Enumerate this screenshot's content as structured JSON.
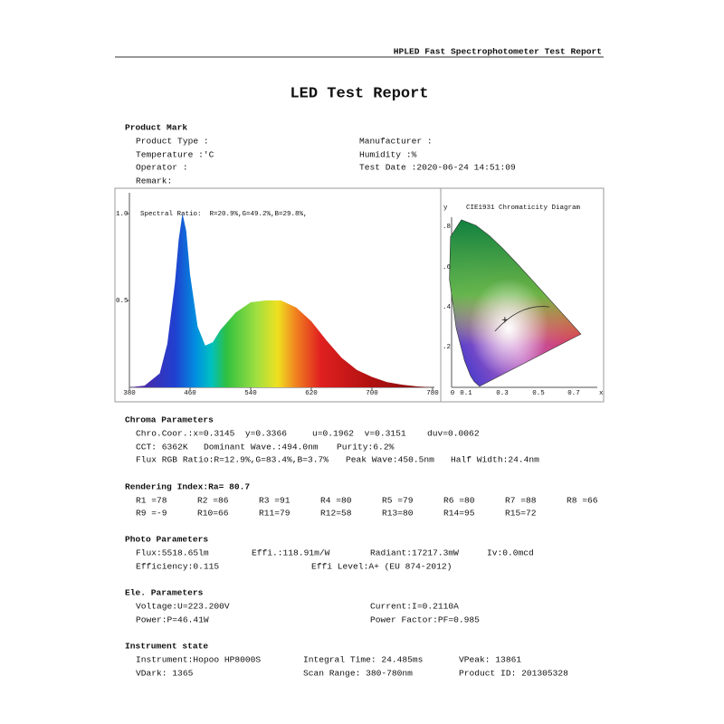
{
  "header": "HPLED Fast Spectrophotometer Test Report",
  "title": "LED Test Report",
  "sections": [
    {
      "heading": "Product Mark",
      "rows": [
        [
          "Product Type :",
          "Manufacturer :"
        ],
        [
          "Temperature :'C",
          "Humidity :%"
        ],
        [
          "Operator :",
          "Test Date :2020-06-24 14:51:09"
        ],
        [
          "Remark:"
        ]
      ]
    },
    {
      "heading": "Chroma Parameters",
      "rows": [
        [
          "Chro.Coor.:x=0.3145  y=0.3366",
          "u=0.1962  v=0.3151",
          "duv=0.0062"
        ],
        [
          "CCT: 6362K",
          "Dominant Wave.:494.0nm",
          "Purity:6.2%"
        ],
        [
          "Flux RGB Ratio:R=12.9%,G=83.4%,B=3.7%",
          "Peak Wave:450.5nm",
          "Half Width:24.4nm"
        ]
      ]
    },
    {
      "heading": "Rendering Index:Ra= 80.7",
      "rows": [
        [
          "R1 =78",
          "R2 =86",
          "R3 =91",
          "R4 =80",
          "R5 =79",
          "R6 =80",
          "R7 =88",
          "R8 =66"
        ],
        [
          "R9 =-9",
          "R10=66",
          "R11=79",
          "R12=58",
          "R13=80",
          "R14=95",
          "R15=72"
        ]
      ]
    },
    {
      "heading": "Photo Parameters",
      "rows": [
        [
          "Flux:5518.65lm",
          "Effi.:118.91m/W",
          "Radiant:17217.3mW",
          "Iv:0.0mcd"
        ],
        [
          "Efficiency:0.115",
          "Effi Level:A+ (EU 874-2012)"
        ]
      ]
    },
    {
      "heading": "Ele. Parameters",
      "rows": [
        [
          "Voltage:U=223.200V",
          "Current:I=0.2110A"
        ],
        [
          "Power:P=46.41W",
          "Power Factor:PF=0.985"
        ]
      ]
    },
    {
      "heading": "Instrument state",
      "rows": [
        [
          "Instrument:Hopoo HP8000S",
          "Integral Time: 24.485ms",
          "VPeak: 13861"
        ],
        [
          "VDark: 1365",
          "Scan Range: 380-780nm",
          "Product ID: 201305328"
        ]
      ]
    }
  ],
  "chart_data": {
    "type": "area",
    "annotation": "Spectral Ratio:  R=20.9%,G=49.2%,B=29.8%,",
    "x": [
      380,
      400,
      420,
      430,
      440,
      445,
      450,
      455,
      460,
      470,
      480,
      490,
      500,
      520,
      540,
      560,
      580,
      600,
      620,
      640,
      660,
      680,
      700,
      720,
      740,
      760,
      780
    ],
    "values": [
      0,
      0.01,
      0.08,
      0.25,
      0.6,
      0.85,
      1.0,
      0.9,
      0.65,
      0.35,
      0.24,
      0.26,
      0.33,
      0.43,
      0.49,
      0.5,
      0.5,
      0.46,
      0.38,
      0.27,
      0.17,
      0.1,
      0.06,
      0.03,
      0.015,
      0.005,
      0
    ],
    "xlim": [
      380,
      780
    ],
    "xticks": [
      380,
      460,
      540,
      620,
      700,
      780
    ],
    "ylim": [
      0,
      1.12
    ],
    "yticks": [
      0.5,
      {
        "value": 1,
        "label": "1.0"
      }
    ]
  },
  "cie": {
    "title": "CIE1931 Chromaticity Diagram",
    "y_label": "y",
    "x_label": "x",
    "xtick_labels": [
      "0",
      "0.1",
      "0.3",
      "0.5",
      "0.7"
    ],
    "ytick_labels": [
      ".8",
      ".6",
      ".4",
      ".2"
    ]
  }
}
